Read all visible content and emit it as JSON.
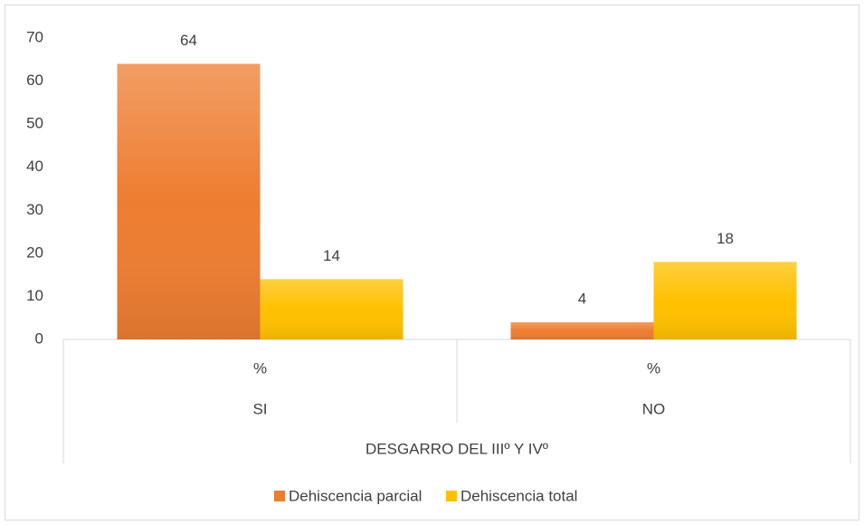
{
  "chart_data": {
    "type": "bar",
    "categories": [
      "%",
      "%"
    ],
    "category_groups": [
      "SI",
      "NO"
    ],
    "group_label": "DESGARRO DEL IIIº Y IVº",
    "series": [
      {
        "name": "Dehiscencia parcial",
        "color": "#ED7D31",
        "values": [
          64,
          4
        ]
      },
      {
        "name": "Dehiscencia total",
        "color": "#FFC000",
        "values": [
          14,
          18
        ]
      }
    ],
    "ylim": [
      0,
      70
    ],
    "yticks": [
      0,
      10,
      20,
      30,
      40,
      50,
      60,
      70
    ],
    "grid": false,
    "legend": "bottom"
  }
}
